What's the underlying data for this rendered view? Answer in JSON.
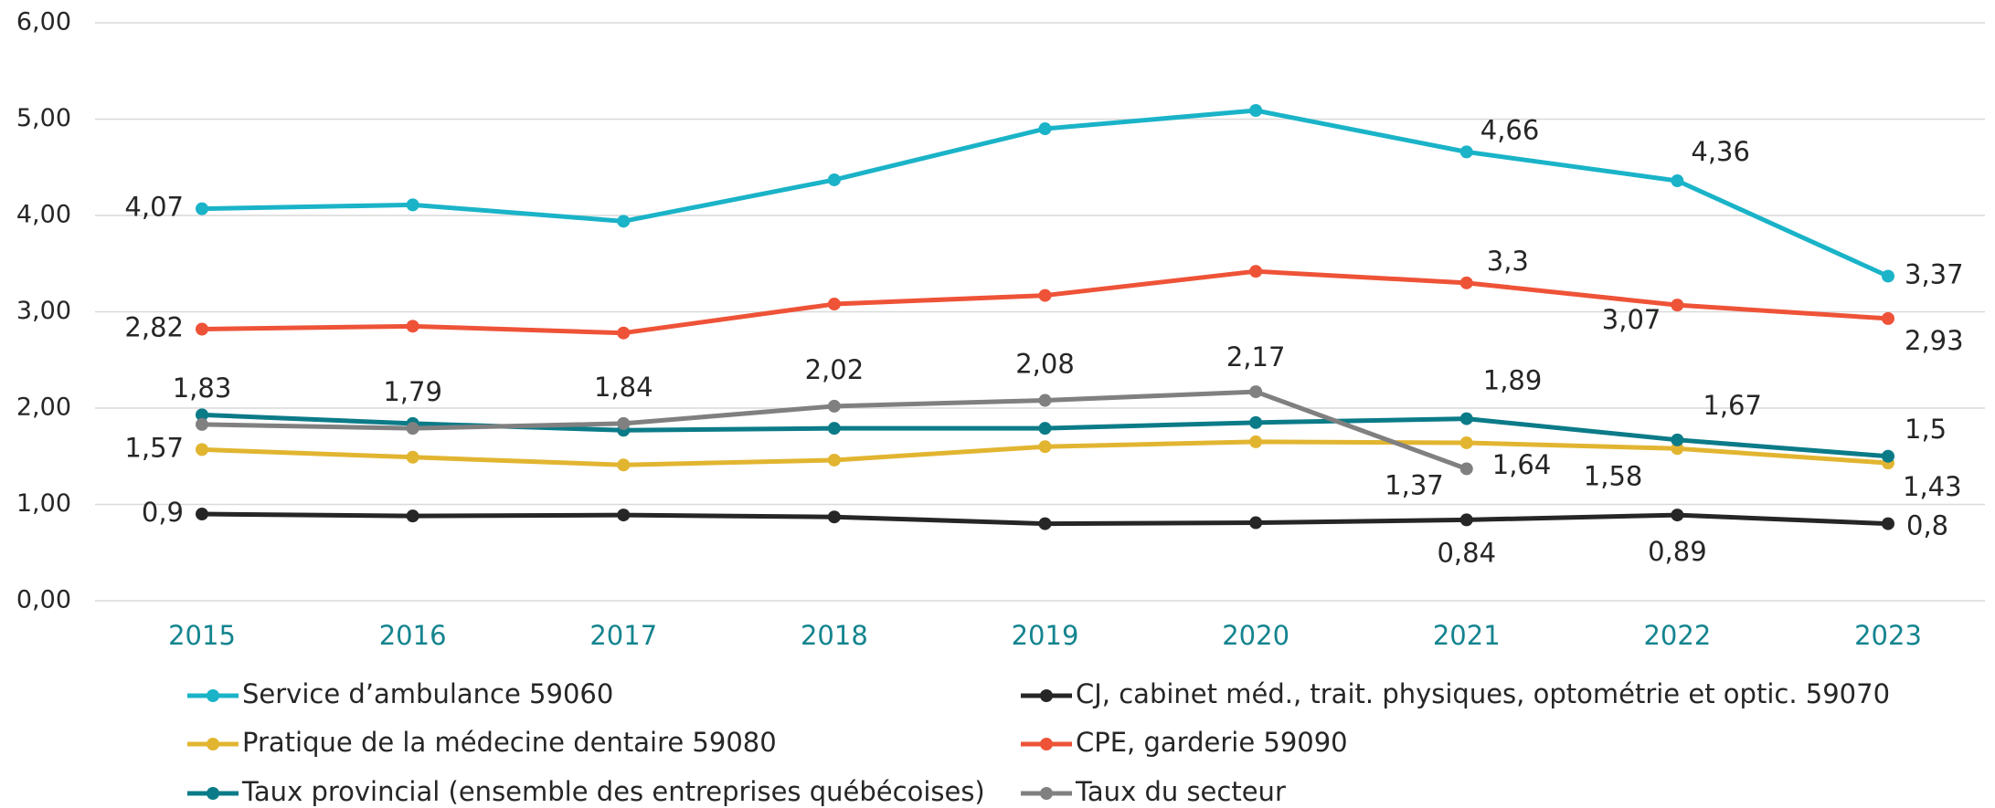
{
  "chart_data": {
    "type": "line",
    "categories": [
      "2015",
      "2016",
      "2017",
      "2018",
      "2019",
      "2020",
      "2021",
      "2022",
      "2023"
    ],
    "ylim": [
      0,
      6
    ],
    "yticks": [
      {
        "value": 0,
        "label": "0,00"
      },
      {
        "value": 1,
        "label": "1,00"
      },
      {
        "value": 2,
        "label": "2,00"
      },
      {
        "value": 3,
        "label": "3,00"
      },
      {
        "value": 4,
        "label": "4,00"
      },
      {
        "value": 5,
        "label": "5,00"
      },
      {
        "value": 6,
        "label": "6,00"
      }
    ],
    "grid": true,
    "series": [
      {
        "name": "Service d’ambulance 59060",
        "color": "#1ab3c8",
        "values": [
          4.07,
          4.11,
          3.94,
          4.37,
          4.9,
          5.09,
          4.66,
          4.36,
          3.37
        ],
        "value_labels": [
          "4,07",
          null,
          null,
          null,
          null,
          null,
          "4,66",
          "4,36",
          "3,37"
        ]
      },
      {
        "name": "CJ, cabinet méd., trait. physiques, optométrie et optic. 59070",
        "color": "#262626",
        "values": [
          0.9,
          0.88,
          0.89,
          0.87,
          0.8,
          0.81,
          0.84,
          0.89,
          0.8
        ],
        "value_labels": [
          "0,9",
          null,
          null,
          null,
          null,
          null,
          "0,84",
          "0,89",
          "0,8"
        ]
      },
      {
        "name": "Pratique de la médecine dentaire 59080",
        "color": "#e2b531",
        "values": [
          1.57,
          1.49,
          1.41,
          1.46,
          1.6,
          1.65,
          1.64,
          1.58,
          1.43
        ],
        "value_labels": [
          "1,57",
          null,
          null,
          null,
          null,
          null,
          "1,64",
          "1,58",
          "1,43"
        ]
      },
      {
        "name": "CPE, garderie 59090",
        "color": "#ee5338",
        "values": [
          2.82,
          2.85,
          2.78,
          3.08,
          3.17,
          3.42,
          3.3,
          3.07,
          2.93
        ],
        "value_labels": [
          "2,82",
          null,
          null,
          null,
          null,
          null,
          "3,3",
          "3,07",
          "2,93"
        ]
      },
      {
        "name": "Taux provincial (ensemble des entreprises québécoises)",
        "color": "#0b7b88",
        "values": [
          1.93,
          1.84,
          1.77,
          1.79,
          1.79,
          1.85,
          1.89,
          1.67,
          1.5
        ],
        "value_labels": [
          null,
          null,
          null,
          null,
          null,
          null,
          "1,89",
          "1,67",
          "1,5"
        ]
      },
      {
        "name": "Taux du secteur",
        "color": "#808080",
        "values": [
          1.83,
          1.79,
          1.84,
          2.02,
          2.08,
          2.17,
          1.37,
          null,
          null
        ],
        "value_labels": [
          "1,83",
          "1,79",
          "1,84",
          "2,02",
          "2,08",
          "2,17",
          "1,37",
          null,
          null
        ]
      }
    ]
  }
}
